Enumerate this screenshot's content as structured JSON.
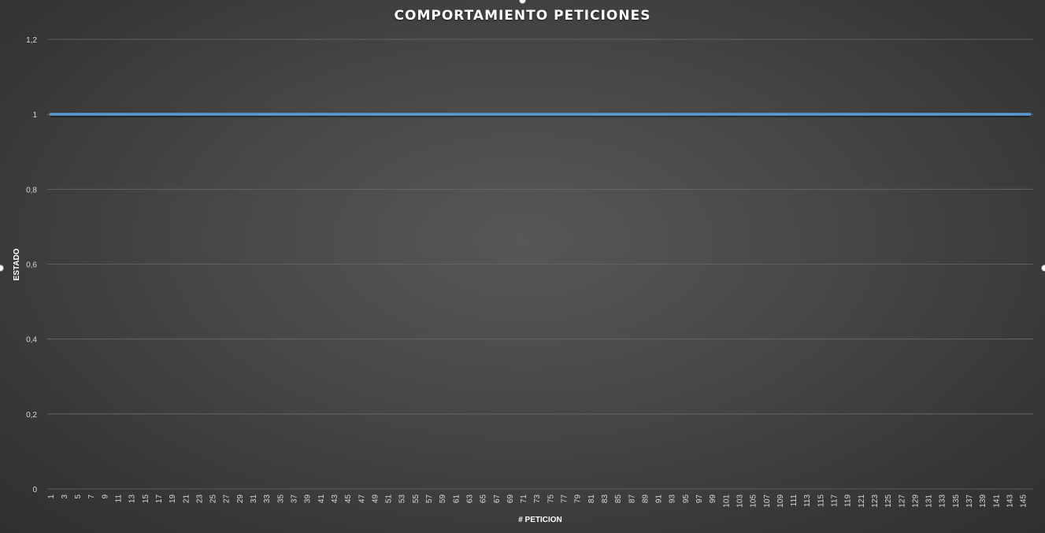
{
  "chart_data": {
    "type": "line",
    "title": "COMPORTAMIENTO PETICIONES",
    "xlabel": "# PETICION",
    "ylabel": "ESTADO",
    "x_start": 1,
    "x_end": 146,
    "x_tick_step": 2,
    "ylim": [
      0,
      1.2
    ],
    "y_ticks": [
      "0",
      "0,2",
      "0,4",
      "0,6",
      "0,8",
      "1",
      "1,2"
    ],
    "grid": true,
    "legend": "none",
    "series": [
      {
        "constant_value": 1,
        "color": "#5b9bd5"
      }
    ]
  },
  "colors": {
    "line": "#5b9bd5",
    "gridline": "#6a6a6a",
    "text": "#d9d9d9"
  }
}
